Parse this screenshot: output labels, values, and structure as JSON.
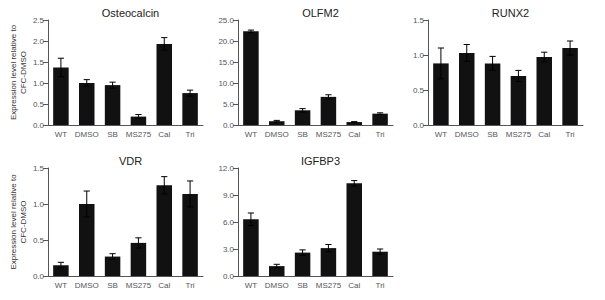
{
  "chart_data": [
    {
      "type": "bar",
      "title": "Osteocalcin",
      "categories": [
        "WT",
        "DMSO",
        "SB",
        "MS275",
        "Cal",
        "Tri"
      ],
      "values": [
        1.37,
        1.0,
        0.95,
        0.2,
        1.93,
        0.76
      ],
      "errors": [
        0.22,
        0.08,
        0.07,
        0.05,
        0.15,
        0.07
      ],
      "color": "#111111",
      "ylim": [
        0,
        2.5
      ],
      "yticks": [
        {
          "value": 0,
          "label": "0.0"
        },
        0.5,
        {
          "value": 1,
          "label": "1.0"
        },
        1.5,
        {
          "value": 2,
          "label": "2.0"
        },
        2.5
      ],
      "ylabel": "Expression level relative to\nCFC-DMSO",
      "grid": false
    },
    {
      "type": "bar",
      "title": "OLFM2",
      "categories": [
        "WT",
        "DMSO",
        "SB",
        "MS275",
        "Cal",
        "Tri"
      ],
      "values": [
        22.3,
        0.9,
        3.5,
        6.7,
        0.7,
        2.7
      ],
      "errors": [
        0.3,
        0.2,
        0.4,
        0.5,
        0.1,
        0.2
      ],
      "color": "#111111",
      "ylim": [
        0,
        25.0
      ],
      "yticks": [
        {
          "value": 0,
          "label": "0.0"
        },
        {
          "value": 5,
          "label": "5.0"
        },
        {
          "value": 10,
          "label": "10.0"
        },
        {
          "value": 15,
          "label": "15.0"
        },
        {
          "value": 20,
          "label": "20.0"
        },
        {
          "value": 25,
          "label": "25.0"
        }
      ],
      "grid": false
    },
    {
      "type": "bar",
      "title": "RUNX2",
      "categories": [
        "WT",
        "DMSO",
        "SB",
        "MS275",
        "Cal",
        "Tri"
      ],
      "values": [
        0.88,
        1.03,
        0.88,
        0.7,
        0.97,
        1.1
      ],
      "errors": [
        0.22,
        0.12,
        0.1,
        0.08,
        0.07,
        0.1
      ],
      "color": "#111111",
      "ylim": [
        0,
        1.5
      ],
      "yticks": [
        {
          "value": 0,
          "label": "0.0"
        },
        0.5,
        {
          "value": 1,
          "label": "1.0"
        },
        1.5
      ],
      "grid": false
    },
    {
      "type": "bar",
      "title": "VDR",
      "categories": [
        "WT",
        "DMSO",
        "SB",
        "MS275",
        "Cal",
        "Tri"
      ],
      "values": [
        0.15,
        1.0,
        0.27,
        0.46,
        1.26,
        1.14
      ],
      "errors": [
        0.04,
        0.18,
        0.04,
        0.07,
        0.12,
        0.18
      ],
      "color": "#111111",
      "ylim": [
        0,
        1.5
      ],
      "yticks": [
        {
          "value": 0,
          "label": "0.0"
        },
        0.5,
        {
          "value": 1,
          "label": "1.0"
        },
        1.5
      ],
      "ylabel": "Expression level relative to\nCFC-DMSO",
      "grid": false
    },
    {
      "type": "bar",
      "title": "IGFBP3",
      "categories": [
        "WT",
        "DMSO",
        "SB",
        "MS275",
        "Cal",
        "Tri"
      ],
      "values": [
        6.3,
        1.1,
        2.6,
        3.1,
        10.3,
        2.7
      ],
      "errors": [
        0.7,
        0.2,
        0.3,
        0.4,
        0.3,
        0.3
      ],
      "color": "#111111",
      "ylim": [
        0,
        12.0
      ],
      "yticks": [
        {
          "value": 0,
          "label": "0.0"
        },
        {
          "value": 3,
          "label": "3.0"
        },
        {
          "value": 6,
          "label": "6.0"
        },
        {
          "value": 9,
          "label": "9.0"
        },
        {
          "value": 12,
          "label": "12.0"
        }
      ],
      "grid": false
    }
  ]
}
